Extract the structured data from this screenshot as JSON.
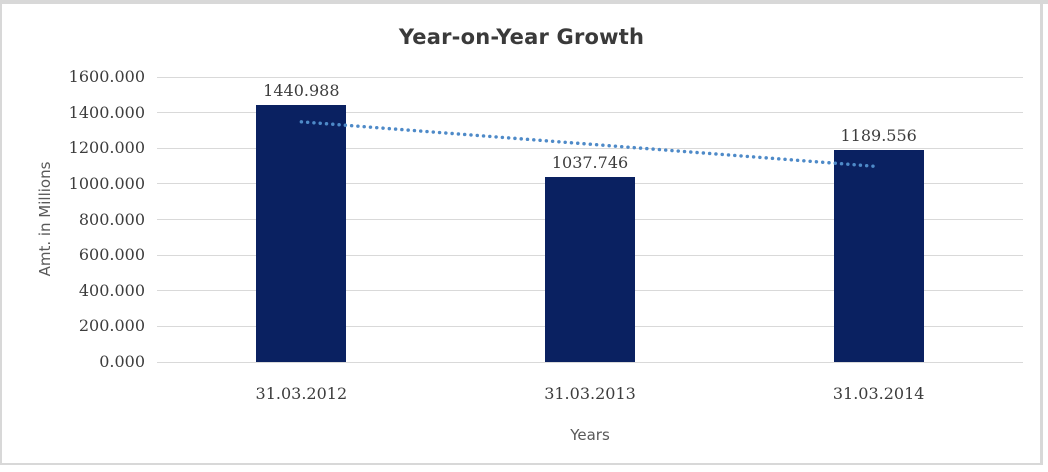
{
  "window": {
    "background_color": "#ffffff",
    "frame_border_color": "#d8d8d8"
  },
  "chart_data": {
    "type": "bar",
    "title": "Year-on-Year Growth",
    "categories": [
      "31.03.2012",
      "31.03.2013",
      "31.03.2014"
    ],
    "values": [
      1440.988,
      1037.746,
      1189.556
    ],
    "data_labels": [
      "1440.988",
      "1037.746",
      "1189.556"
    ],
    "xlabel": "Years",
    "ylabel": "Amt. in Millions",
    "ylim": [
      0,
      1600
    ],
    "ytick_step": 200,
    "ytick_labels": [
      "1600.000",
      "1400.000",
      "1200.000",
      "1000.000",
      "800.000",
      "600.000",
      "400.000",
      "200.000",
      "0.000"
    ],
    "grid": true,
    "legend": false,
    "colors": {
      "bar": "#0a2161",
      "gridline": "#d9d9d9",
      "title": "#3a3a3a",
      "tick_labels": "#3d3d3d",
      "axis_titles": "#595959",
      "trendline": "#4e8ac8"
    },
    "trendline": {
      "type": "linear",
      "style": "dotted",
      "start_value": 1348.5,
      "end_value": 1097.0,
      "start_category_index": 0,
      "end_category_index": 2
    }
  }
}
